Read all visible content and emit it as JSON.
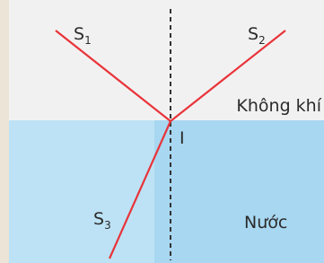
{
  "rays": [
    {
      "letter": "S",
      "subscript": "1"
    },
    {
      "letter": "S",
      "subscript": "2"
    },
    {
      "letter": "S",
      "subscript": "3"
    }
  ],
  "point": "I",
  "media": {
    "upper": "Không khí",
    "lower": "Nước"
  }
}
